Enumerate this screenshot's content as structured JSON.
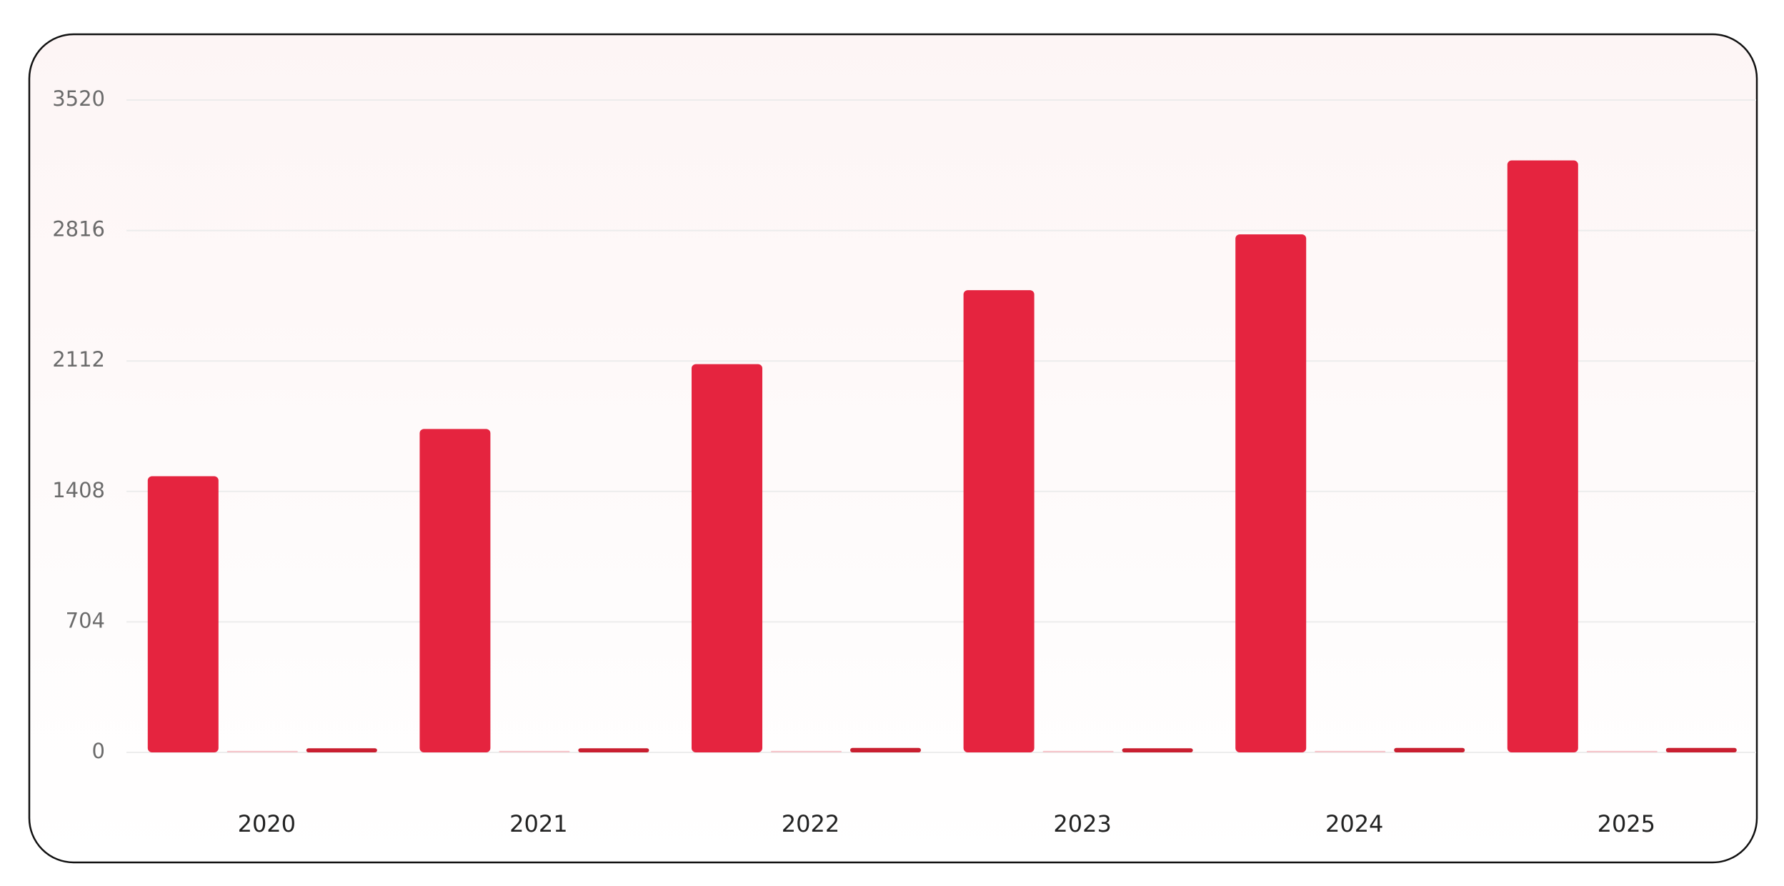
{
  "chart_data": {
    "type": "bar",
    "categories": [
      "2020",
      "2021",
      "2022",
      "2023",
      "2024",
      "2025"
    ],
    "series": [
      {
        "color": "#e5243f",
        "values": [
          1490,
          1745,
          2095,
          2494,
          2795,
          3194
        ]
      },
      {
        "color": "#f5c4ca",
        "values": [
          8,
          8,
          8,
          8,
          8,
          8
        ]
      },
      {
        "color": "#c91f30",
        "values": [
          22,
          22,
          24,
          22,
          24,
          24
        ]
      }
    ],
    "ylim": [
      0,
      3520
    ],
    "yticks": [
      0,
      704,
      1408,
      2112,
      2816,
      3520
    ],
    "grid": true
  }
}
